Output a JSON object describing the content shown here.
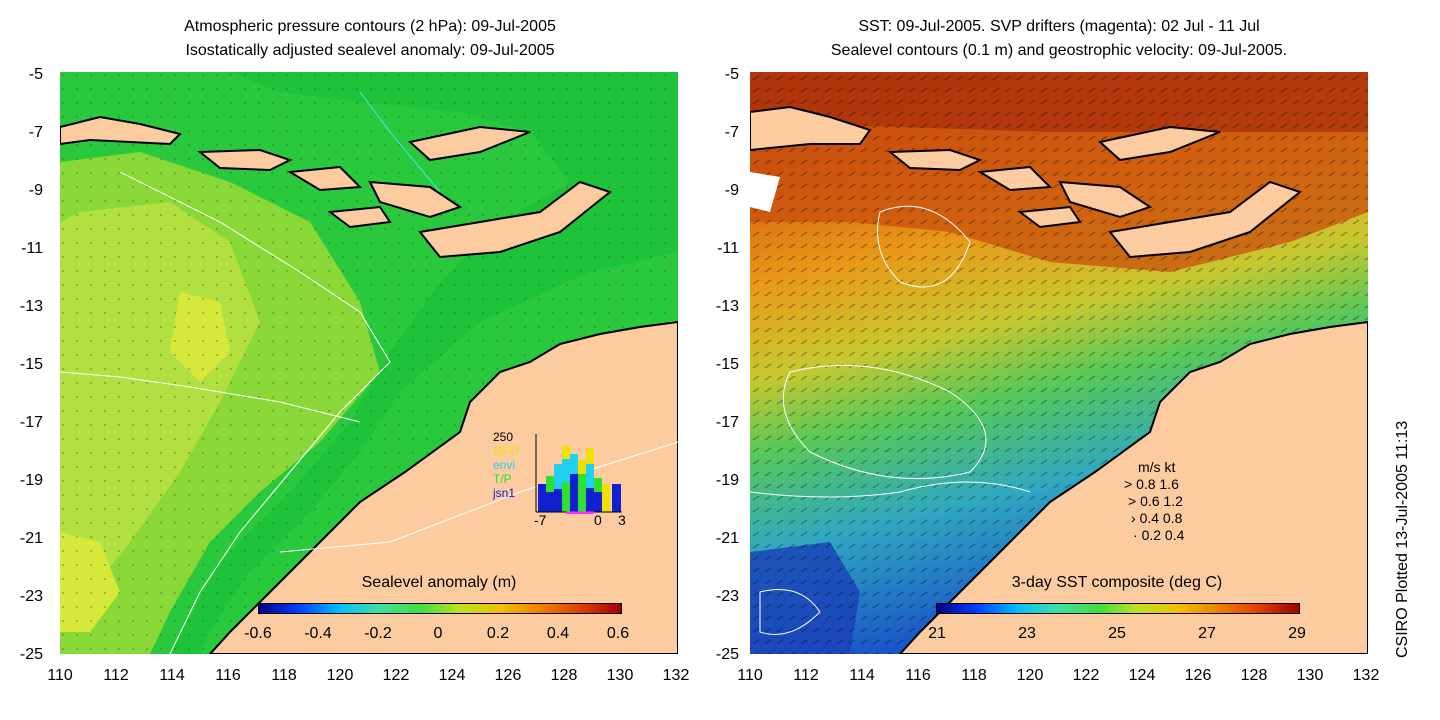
{
  "left_panel": {
    "title_line1": "Atmospheric pressure contours (2 hPa): 09-Jul-2005",
    "title_line2": "Isostatically adjusted sealevel anomaly: 09-Jul-2005",
    "colorbar": {
      "label": "Sealevel anomaly (m)",
      "ticks": [
        "-0.6",
        "-0.4",
        "-0.2",
        "0",
        "0.2",
        "0.4",
        "0.6"
      ]
    },
    "inset": {
      "y_max_label": "250",
      "series": [
        "GFO",
        "envi",
        "T/P",
        "jsn1"
      ],
      "series_colors": [
        "#f0e000",
        "#20d0f0",
        "#30e030",
        "#1020d0"
      ],
      "x_labels": [
        "-7",
        "0",
        "3"
      ]
    }
  },
  "right_panel": {
    "title_line1": "SST: 09-Jul-2005. SVP drifters (magenta): 02 Jul - 11 Jul",
    "title_line2": "Sealevel contours (0.1 m) and geostrophic velocity: 09-Jul-2005.",
    "colorbar": {
      "label": "3-day SST composite (deg C)",
      "ticks": [
        "21",
        "23",
        "25",
        "27",
        "29"
      ]
    },
    "velocity_legend": {
      "header": "m/s  kt",
      "rows": [
        "0.8  1.6",
        "0.6  1.2",
        "0.4  0.8",
        "0.2  0.4"
      ]
    }
  },
  "axes": {
    "y_ticks": [
      "-5",
      "-7",
      "-9",
      "-11",
      "-13",
      "-15",
      "-17",
      "-19",
      "-21",
      "-23",
      "-25"
    ],
    "x_ticks": [
      "110",
      "112",
      "114",
      "116",
      "118",
      "120",
      "122",
      "124",
      "126",
      "128",
      "130",
      "132"
    ]
  },
  "footer": "CSIRO Plotted 13-Jul-2005 11:13",
  "colors": {
    "land": "#fccca0",
    "ocean_green": "#22c040",
    "ocean_light": "#a0e040",
    "sst_warm": "#c04010",
    "sst_mid": "#e08a10",
    "sst_cool": "#2080d0"
  }
}
